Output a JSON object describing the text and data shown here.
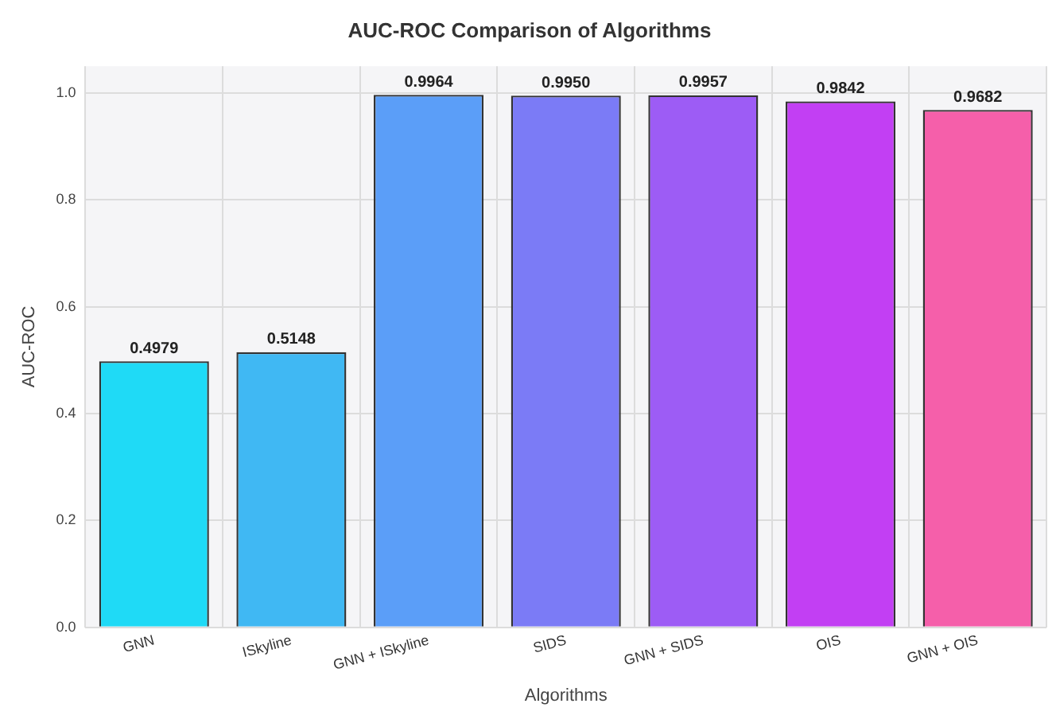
{
  "chart_data": {
    "type": "bar",
    "title": "AUC-ROC Comparison of Algorithms",
    "xlabel": "Algorithms",
    "ylabel": "AUC-ROC",
    "categories": [
      "GNN",
      "ISkyline",
      "GNN + ISkyline",
      "SIDS",
      "GNN + SIDS",
      "OIS",
      "GNN + OIS"
    ],
    "values": [
      0.4979,
      0.5148,
      0.9964,
      0.995,
      0.9957,
      0.9842,
      0.9682
    ],
    "value_labels": [
      "0.4979",
      "0.5148",
      "0.9964",
      "0.9950",
      "0.9957",
      "0.9842",
      "0.9682"
    ],
    "colors": [
      "#1fdaf6",
      "#40b8f3",
      "#5b9ef8",
      "#7b7bf6",
      "#9d5cf5",
      "#c23ff3",
      "#f55faa"
    ],
    "ylim": [
      0,
      1.05
    ],
    "yticks": [
      {
        "value": 0,
        "label": "0.0"
      },
      {
        "value": 0.2,
        "label": "0.2"
      },
      {
        "value": 0.4,
        "label": "0.4"
      },
      {
        "value": 0.6,
        "label": "0.6"
      },
      {
        "value": 0.8,
        "label": "0.8"
      },
      {
        "value": 1,
        "label": "1.0"
      }
    ],
    "grid": true
  }
}
